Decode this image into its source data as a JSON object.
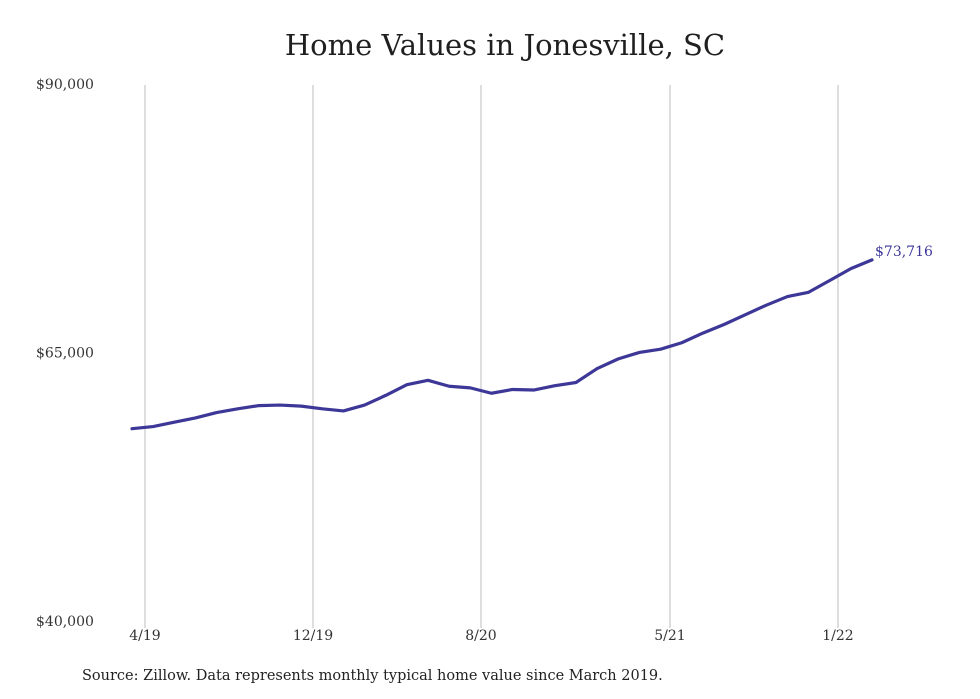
{
  "chart_data": {
    "type": "line",
    "title": "Home Values in Jonesville, SC",
    "xlabel": "",
    "ylabel": "",
    "ylim": [
      40000,
      90000
    ],
    "y_ticks": [
      {
        "value": 90000,
        "label": "$90,000"
      },
      {
        "value": 65000,
        "label": "$65,000"
      },
      {
        "value": 40000,
        "label": "$40,000"
      }
    ],
    "x_ticks": [
      {
        "index": 1,
        "label": "4/19"
      },
      {
        "index": 9,
        "label": "12/19"
      },
      {
        "index": 17,
        "label": "8/20"
      },
      {
        "index": 26,
        "label": "5/21"
      },
      {
        "index": 34,
        "label": "1/22"
      }
    ],
    "x": [
      "3/19",
      "4/19",
      "5/19",
      "6/19",
      "7/19",
      "8/19",
      "9/19",
      "10/19",
      "11/19",
      "12/19",
      "1/20",
      "2/20",
      "3/20",
      "4/20",
      "5/20",
      "6/20",
      "7/20",
      "8/20",
      "9/20",
      "10/20",
      "11/20",
      "12/20",
      "1/21",
      "2/21",
      "3/21",
      "4/21",
      "5/21",
      "6/21",
      "7/21",
      "8/21",
      "9/21",
      "10/21",
      "11/21",
      "12/21",
      "1/22",
      "2/22",
      "3/22"
    ],
    "series": [
      {
        "color": "#3d3797",
        "values": [
          58000,
          58200,
          58600,
          59000,
          59500,
          59850,
          60150,
          60200,
          60100,
          59850,
          59650,
          60200,
          61100,
          62100,
          62500,
          61950,
          61800,
          61300,
          61650,
          61600,
          62000,
          62300,
          63600,
          64500,
          65100,
          65400,
          66000,
          66900,
          67700,
          68600,
          69500,
          70300,
          70700,
          71800,
          72900,
          73716,
          73716
        ]
      }
    ],
    "end_label": "$73,716",
    "grid": {
      "vertical": true,
      "horizontal": false,
      "color": "#bdbdbd"
    }
  },
  "source_note": "Source: Zillow. Data represents monthly typical home value since March 2019."
}
